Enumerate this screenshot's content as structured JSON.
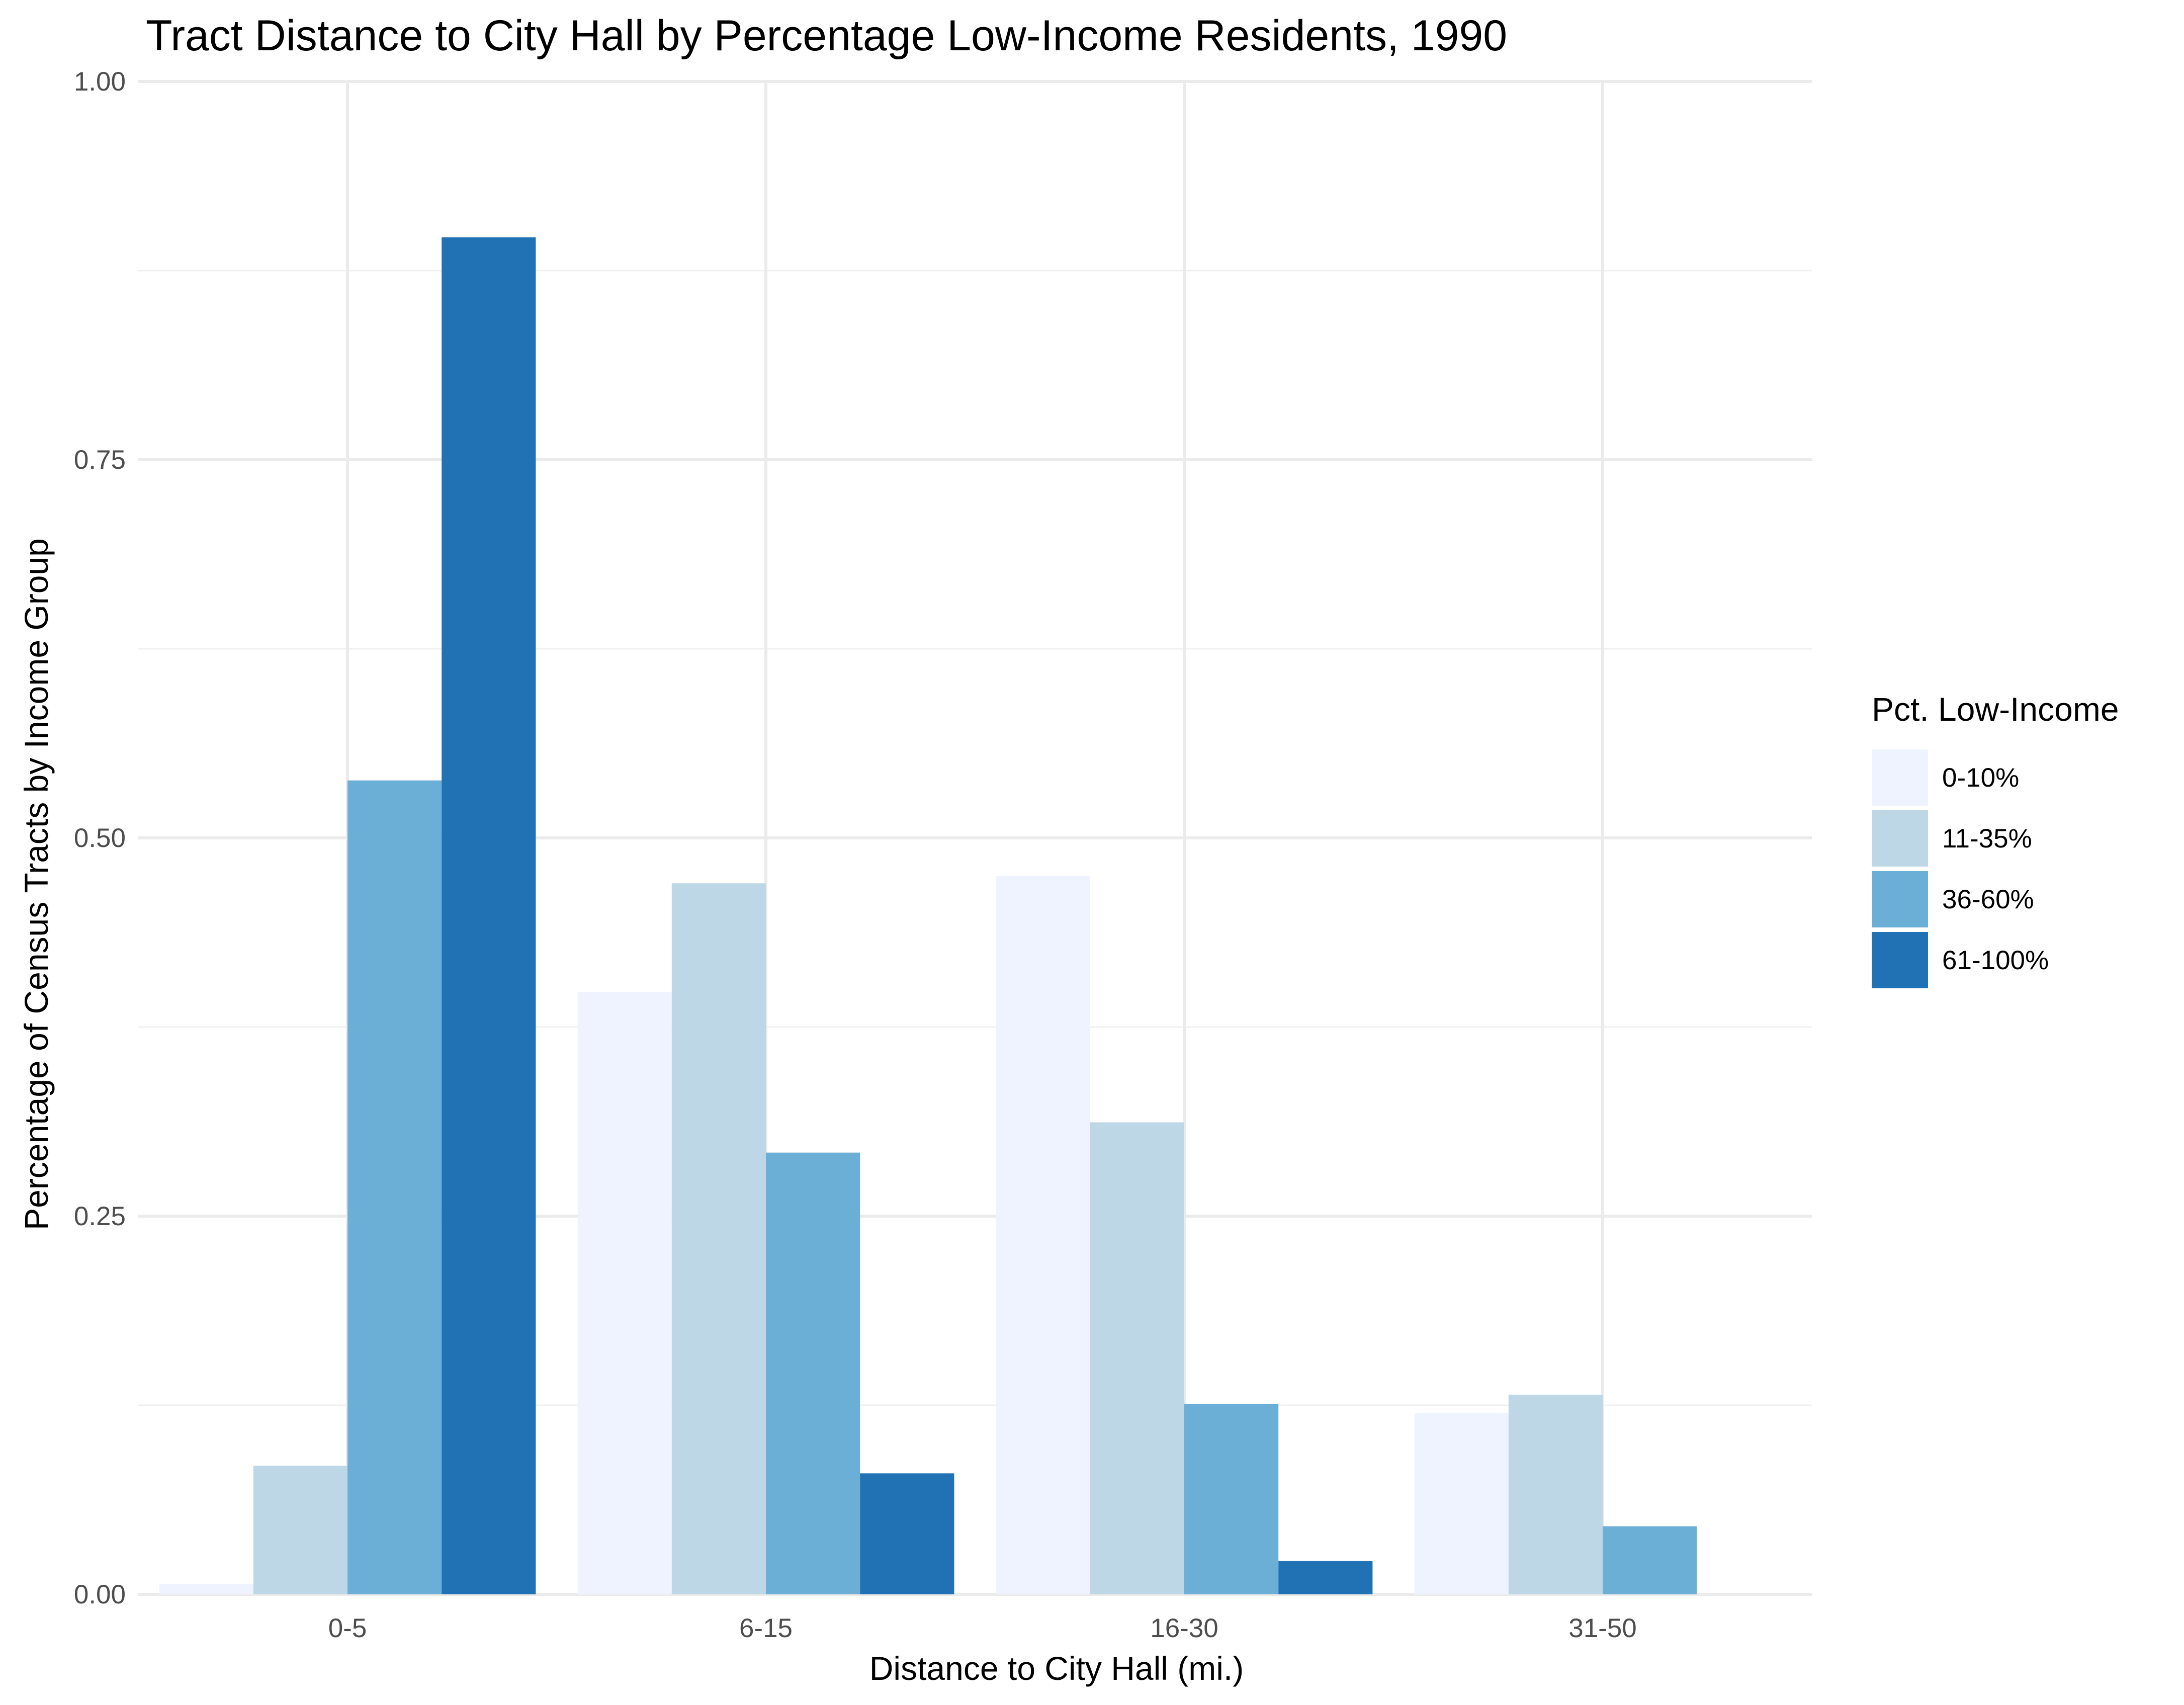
{
  "chart_data": {
    "type": "bar",
    "title": "Tract Distance to City Hall by Percentage Low-Income Residents, 1990",
    "xlabel": "Distance to City Hall (mi.)",
    "ylabel": "Percentage of Census Tracts by Income Group",
    "categories": [
      "0-5",
      "6-15",
      "16-30",
      "31-50"
    ],
    "ylim": [
      0,
      1
    ],
    "yticks": [
      0,
      0.25,
      0.5,
      0.75,
      1
    ],
    "ytick_labels": [
      "0.00",
      "0.25",
      "0.50",
      "0.75",
      "1.00"
    ],
    "grid": true,
    "legend": {
      "title": "Pct. Low-Income",
      "position": "right"
    },
    "series": [
      {
        "name": "0-10%",
        "color": "#eff3ff",
        "values": [
          0.007,
          0.398,
          0.475,
          0.12
        ]
      },
      {
        "name": "11-35%",
        "color": "#bdd7e7",
        "values": [
          0.085,
          0.47,
          0.312,
          0.132
        ]
      },
      {
        "name": "36-60%",
        "color": "#6baed6",
        "values": [
          0.538,
          0.292,
          0.126,
          0.045
        ]
      },
      {
        "name": "61-100%",
        "color": "#2171b5",
        "values": [
          0.897,
          0.08,
          0.022,
          0
        ]
      }
    ]
  }
}
